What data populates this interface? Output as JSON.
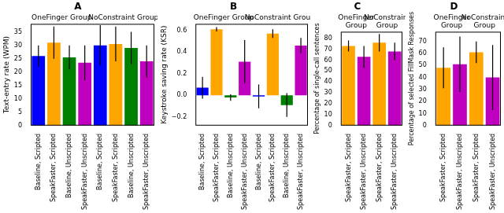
{
  "chart_data": [
    {
      "type": "bar",
      "title": "A",
      "y_label": "Text-entry rate (WPM)",
      "annotations": [
        "OneFinger Group",
        "NoConstraint Group"
      ],
      "categories": [
        "Baseline, Scripted",
        "SpeakFaster, Scripted",
        "Baseline, Unscripted",
        "SpeakFaster, Unscripted",
        "Baseline, Scripted",
        "SpeakFaster, Scripted",
        "Baseline, Unscripted",
        "SpeakFaster, Unscripted"
      ],
      "values": [
        26,
        31,
        25.5,
        23.5,
        30,
        30.5,
        29,
        24
      ],
      "errors": [
        4,
        6,
        4.5,
        6.5,
        7.5,
        6.5,
        6,
        6
      ],
      "colors": [
        "#0000ff",
        "#ffa500",
        "#008000",
        "#bf00bf",
        "#0000ff",
        "#ffa500",
        "#008000",
        "#bf00bf"
      ],
      "ylim": [
        0,
        38
      ],
      "yticks": [
        0,
        5,
        10,
        15,
        20,
        25,
        30,
        35
      ],
      "grid": false
    },
    {
      "type": "bar",
      "title": "B",
      "y_label": "Keystroke saving rate (KSR)",
      "annotations": [
        "OneFinger Group",
        "NoConstraint Group"
      ],
      "categories": [
        "Baseline, Scripted",
        "SpeakFaster, Scripted",
        "Baseline, Unscripted",
        "SpeakFaster, Unscripted",
        "Baseline, Scripted",
        "SpeakFaster, Scripted",
        "Baseline, Unscripted",
        "SpeakFaster, Unscripted"
      ],
      "values": [
        0.07,
        0.61,
        -0.02,
        0.31,
        -0.01,
        0.57,
        -0.09,
        0.46
      ],
      "errors": [
        0.1,
        0.02,
        0.03,
        0.2,
        0.11,
        0.04,
        0.11,
        0.07
      ],
      "colors": [
        "#0000ff",
        "#ffa500",
        "#008000",
        "#bf00bf",
        "#0000ff",
        "#ffa500",
        "#008000",
        "#bf00bf"
      ],
      "ylim": [
        -0.28,
        0.66
      ],
      "yticks": [
        {
          "value": -0.2,
          "label": "−0.2"
        },
        {
          "value": 0,
          "label": "0.0"
        },
        {
          "value": 0.2,
          "label": "0.2"
        },
        {
          "value": 0.4,
          "label": "0.4"
        },
        {
          "value": 0.6,
          "label": "0.6"
        }
      ],
      "grid": false
    },
    {
      "type": "bar",
      "title": "C",
      "y_label": "Percentage of single-call sentences",
      "annotations": [
        "OneFinger Group",
        "NoConstraint Group"
      ],
      "categories": [
        "SpeakFaster, Scripted",
        "SpeakFaster, Unscripted",
        "SpeakFaster, Scripted",
        "SpeakFaster, Unscripted"
      ],
      "values": [
        73,
        63,
        76,
        68
      ],
      "errors": [
        5,
        10,
        8,
        8
      ],
      "colors": [
        "#ffa500",
        "#bf00bf",
        "#ffa500",
        "#bf00bf"
      ],
      "ylim": [
        0,
        86
      ],
      "yticks": [
        0,
        10,
        20,
        30,
        40,
        50,
        60,
        70,
        80
      ],
      "grid": false
    },
    {
      "type": "bar",
      "title": "D",
      "y_label": "Percentage of selected FillMask Responses",
      "annotations": [
        "OneFinger Group",
        "NoConstraint Group"
      ],
      "categories": [
        "SpeakFaster, Scripted",
        "SpeakFaster, Unscripted",
        "SpeakFaster, Scripted",
        "SpeakFaster, Unscripted"
      ],
      "values": [
        48,
        51,
        61,
        40
      ],
      "errors": [
        17,
        23,
        9,
        27
      ],
      "colors": [
        "#ffa500",
        "#bf00bf",
        "#ffa500",
        "#bf00bf"
      ],
      "ylim": [
        0,
        78
      ],
      "yticks": [
        0,
        10,
        20,
        30,
        40,
        50,
        60,
        70
      ],
      "grid": false
    }
  ]
}
